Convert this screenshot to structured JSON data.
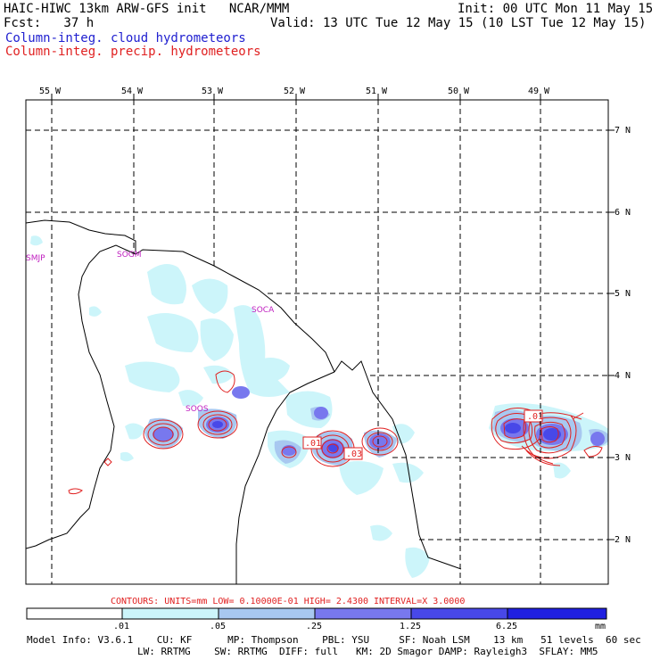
{
  "header": {
    "title_left": "HAIC-HIWC 13km ARW-GFS init   NCAR/MMM",
    "fcst": "Fcst:   37 h",
    "init": "Init: 00 UTC Mon 11 May 15",
    "valid": "Valid: 13 UTC Tue 12 May 15 (10 LST Tue 12 May 15)",
    "legend_cloud": "Column-integ. cloud hydrometeors",
    "legend_precip": "Column-integ. precip. hydrometeors"
  },
  "colors": {
    "cloud_fill": [
      "#ccf5fa",
      "#a8c8f0",
      "#7878ee",
      "#4848e8",
      "#2020e0"
    ],
    "precip_contour": "#e02020",
    "station_label": "#c020c0",
    "grid": "#000000"
  },
  "map": {
    "lon_labels": [
      "55 W",
      "54 W",
      "53 W",
      "52 W",
      "51 W",
      "50 W",
      "49 W"
    ],
    "lat_labels": [
      "7 N",
      "6 N",
      "5 N",
      "4 N",
      "3 N",
      "2 N"
    ],
    "stations": [
      "SMJP",
      "SOGM",
      "SOCA",
      "SOOS"
    ],
    "contour_labels": [
      ".01",
      ".01",
      ".03"
    ]
  },
  "colorbar": {
    "contour_text": "CONTOURS:  UNITS=mm  LOW= 0.10000E-01  HIGH=  2.4300      INTERVAL=X  3.0000",
    "ticks": [
      ".01",
      ".05",
      ".25",
      "1.25",
      "6.25"
    ],
    "units": "mm"
  },
  "model_info": {
    "line1": "Model Info: V3.6.1    CU: KF      MP: Thompson    PBL: YSU     SF: Noah LSM    13 km   51 levels  60 sec",
    "line2": "LW: RRTMG    SW: RRTMG  DIFF: full   KM: 2D Smagor DAMP: Rayleigh3  SFLAY: MM5"
  }
}
